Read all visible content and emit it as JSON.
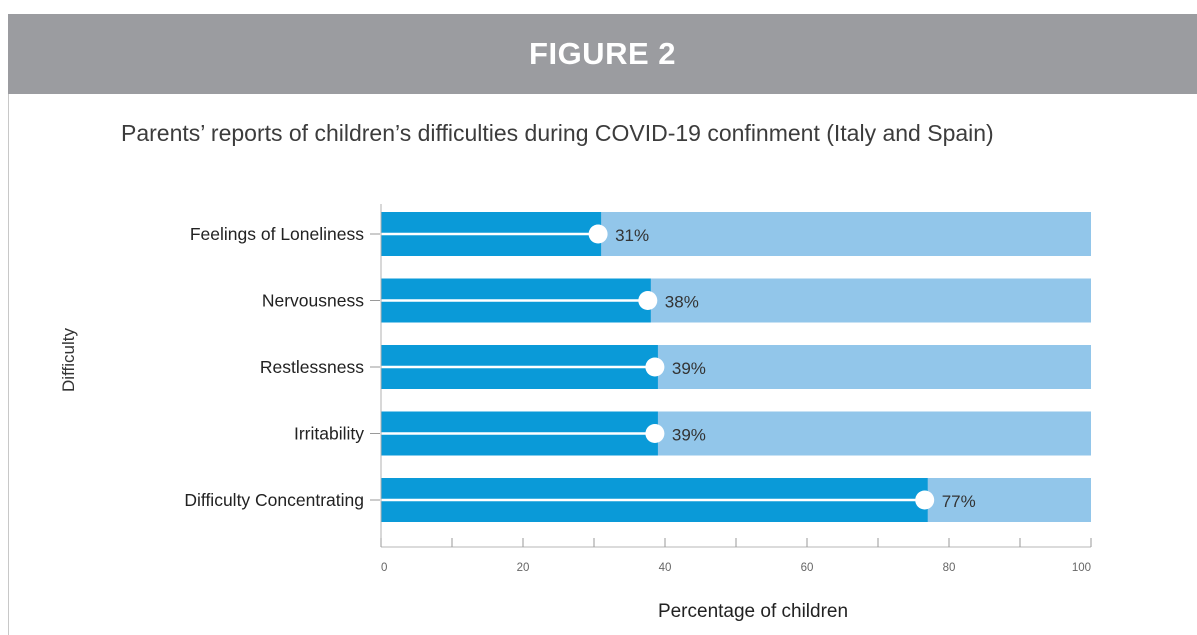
{
  "figure": {
    "label": "FIGURE 2"
  },
  "chart_data": {
    "type": "bar",
    "title": "Parents’ reports of children’s difficulties during COVID-19 confinment (Italy and Spain)",
    "xlabel": "Percentage of children",
    "ylabel": "Difficulty",
    "categories": [
      "Feelings of Loneliness",
      "Nervousness",
      "Restlessness",
      "Irritability",
      "Difficulty Concentrating"
    ],
    "values": [
      31,
      38,
      39,
      39,
      77
    ],
    "data_labels": [
      "31%",
      "38%",
      "39%",
      "39%",
      "77%"
    ],
    "xlim": [
      0,
      100
    ],
    "xticks": [
      "0",
      "20",
      "40",
      "60",
      "80",
      "100"
    ],
    "orientation": "horizontal",
    "grid": false,
    "colors": {
      "value": "#0a9ad8",
      "remainder": "#92c6ea",
      "marker": "#ffffff"
    }
  }
}
